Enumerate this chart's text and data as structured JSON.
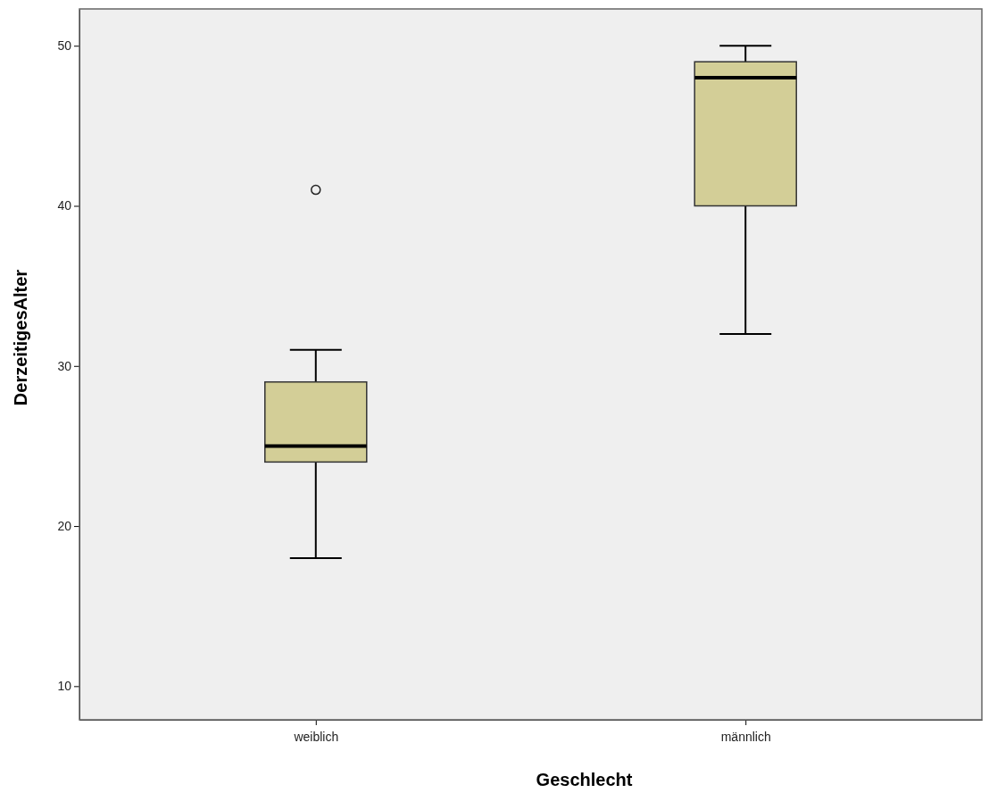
{
  "chart_data": {
    "type": "box",
    "xlabel": "Geschlecht",
    "ylabel": "DerzeitigesAlter",
    "categories": [
      "weiblich",
      "männlich"
    ],
    "boxes": [
      {
        "low": 18,
        "q1": 24,
        "median": 25,
        "q3": 29,
        "high": 31,
        "outliers": [
          41
        ]
      },
      {
        "low": 32,
        "q1": 40,
        "median": 48,
        "q3": 49,
        "high": 50
      }
    ],
    "color": "#d3ce97",
    "ylim": [
      7.9,
      52.3
    ],
    "yticks": [
      10,
      20,
      30,
      40,
      50
    ]
  }
}
